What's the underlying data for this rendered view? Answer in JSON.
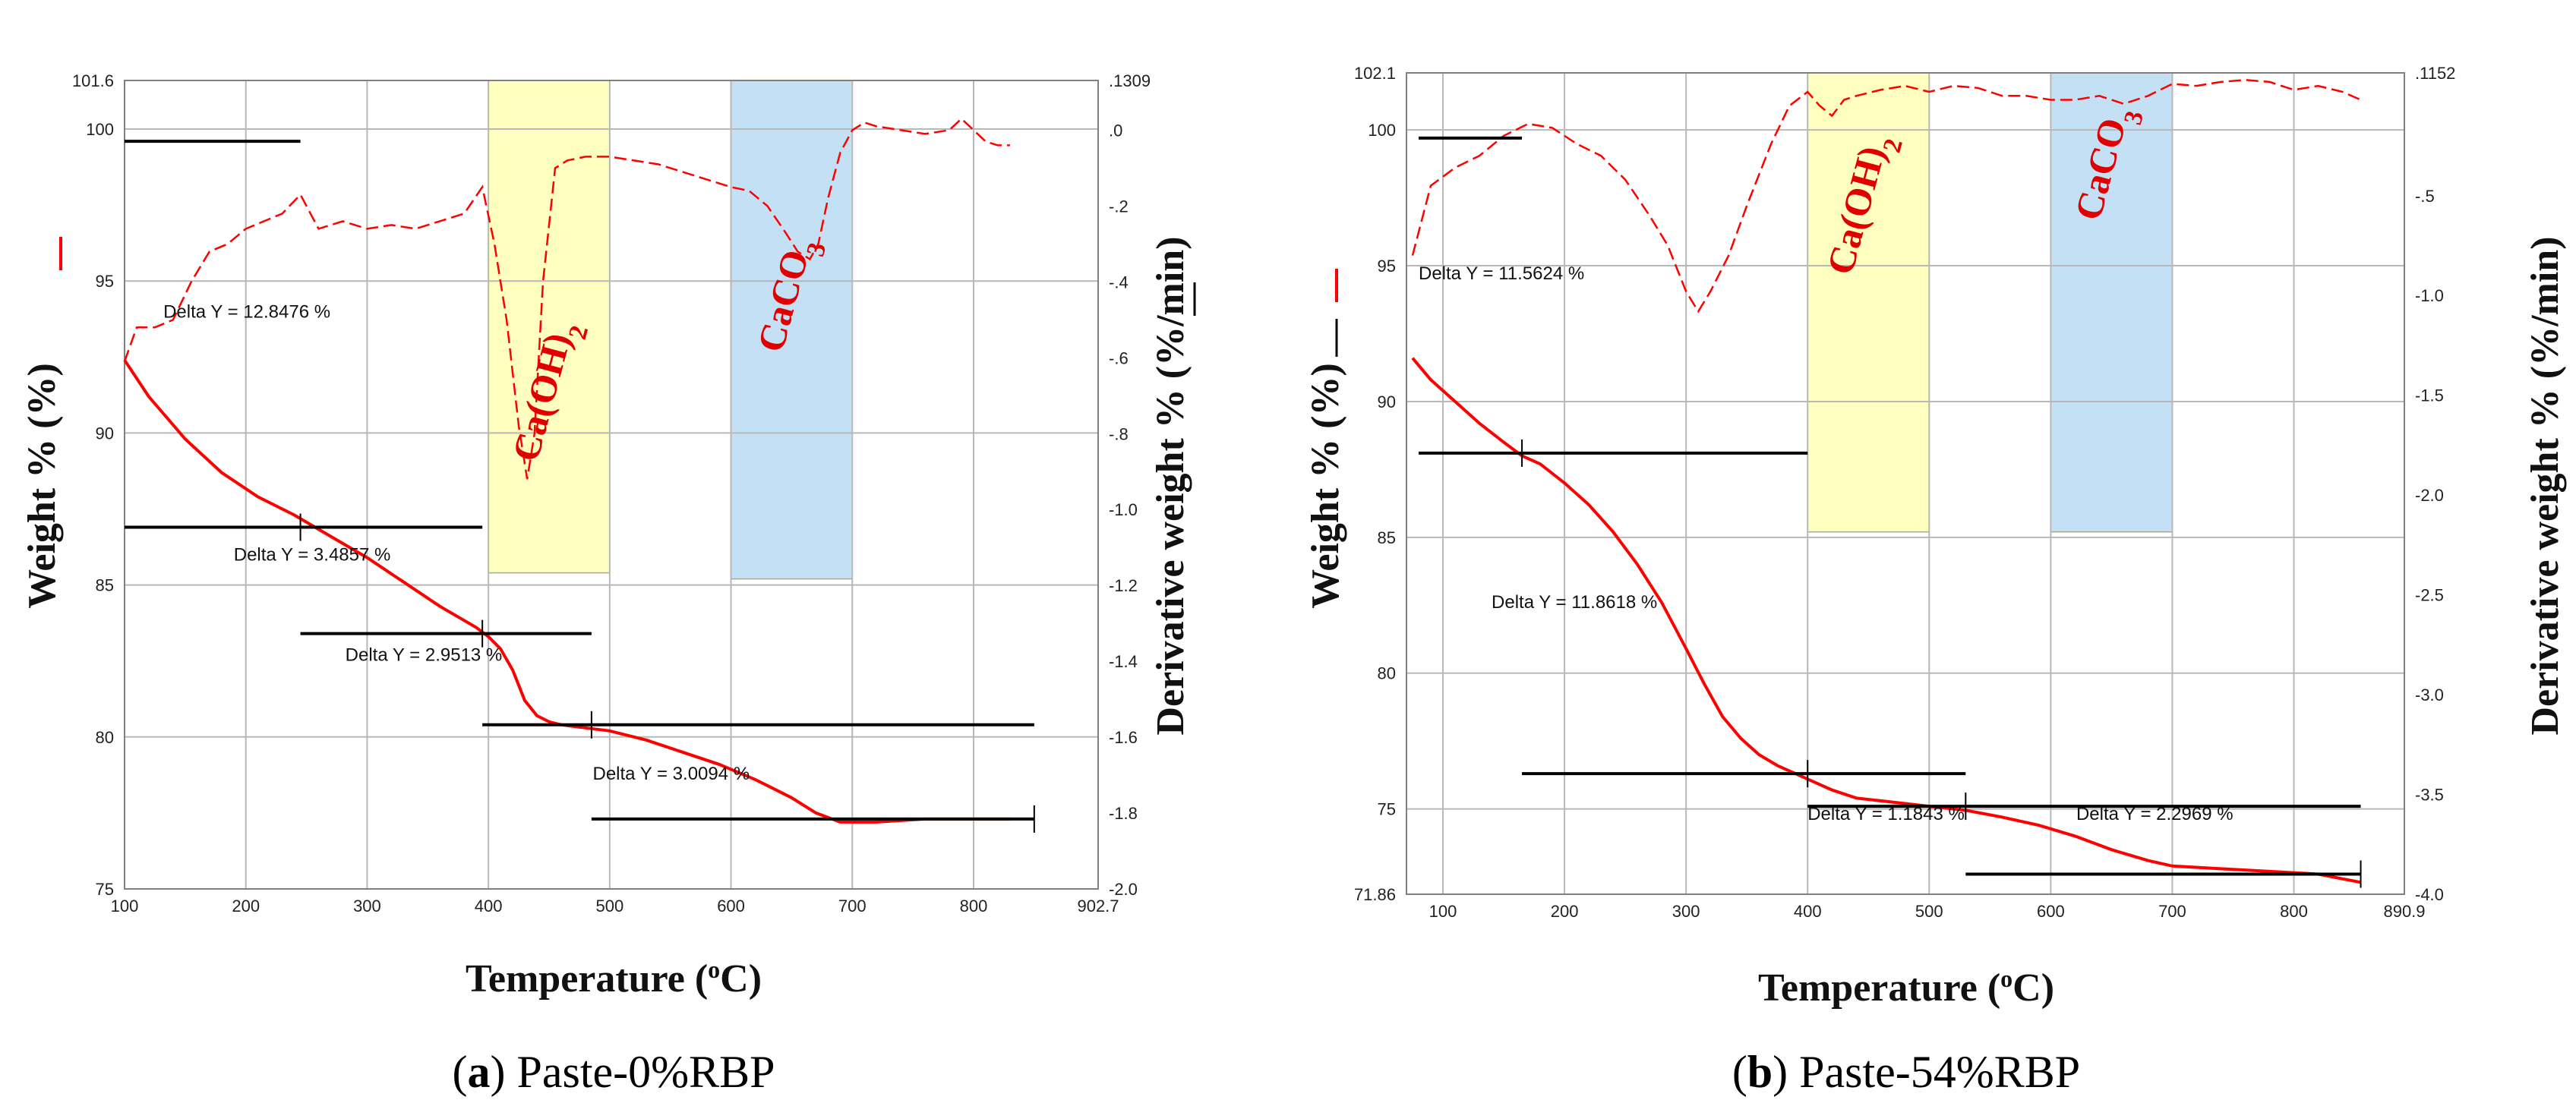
{
  "colors": {
    "weight_line": "#ff0000",
    "derivative_line": "#ff0000",
    "caoh2_band": "#ffffc0",
    "caco3_band": "#c4e0f4",
    "step_lines": "#000000"
  },
  "chart_data": [
    {
      "type": "line",
      "caption_letter": "a",
      "caption_rest": " Paste-0%RBP",
      "xlabel": "Temperature",
      "xunit": "(°C)",
      "ylabel": "Weight % (%)",
      "y2label": "Derivative weight % (%/min)",
      "xlim": [
        100,
        902.7
      ],
      "ylim": [
        75,
        101.6
      ],
      "y2lim": [
        -2.0,
        0.1309
      ],
      "x_ticks": [
        "100",
        "200",
        "300",
        "400",
        "500",
        "600",
        "700",
        "800",
        "902.7"
      ],
      "x_tick_values": [
        100,
        200,
        300,
        400,
        500,
        600,
        700,
        800,
        902.7
      ],
      "y_ticks": [
        "75",
        "80",
        "85",
        "90",
        "95",
        "100",
        "101.6"
      ],
      "y_tick_values": [
        75,
        80,
        85,
        90,
        95,
        100,
        101.6
      ],
      "y2_ticks": [
        "-2.0",
        "-1.8",
        "-1.6",
        "-1.4",
        "-1.2",
        "-1.0",
        "-.8",
        "-.6",
        "-.4",
        "-.2",
        ".0",
        ".1309"
      ],
      "y2_tick_values": [
        -2.0,
        -1.8,
        -1.6,
        -1.4,
        -1.2,
        -1.0,
        -0.8,
        -0.6,
        -0.4,
        -0.2,
        0.0,
        0.1309
      ],
      "bands": [
        {
          "name": "Ca(OH)2",
          "label": "Ca(OH)",
          "sub": "2",
          "x0": 400,
          "x1": 500,
          "y0": 85.4,
          "y1": 101.6,
          "color": "#ffffc0",
          "text_x": 440,
          "text_y": 89,
          "text_angle": -75
        },
        {
          "name": "CaCO3",
          "label": "CaCO",
          "sub": "3",
          "x0": 600,
          "x1": 700,
          "y0": 85.2,
          "y1": 101.6,
          "color": "#c4e0f4",
          "text_x": 642,
          "text_y": 92.6,
          "text_angle": -75
        }
      ],
      "weight": {
        "x": [
          100,
          120,
          150,
          180,
          210,
          240,
          270,
          300,
          330,
          360,
          390,
          400,
          410,
          420,
          430,
          440,
          450,
          460,
          480,
          500,
          530,
          560,
          590,
          620,
          650,
          670,
          690,
          700,
          720,
          760,
          800,
          830
        ],
        "y": [
          92.4,
          91.2,
          89.8,
          88.7,
          87.9,
          87.3,
          86.6,
          85.9,
          85.1,
          84.3,
          83.6,
          83.3,
          82.9,
          82.2,
          81.2,
          80.7,
          80.5,
          80.4,
          80.3,
          80.2,
          79.9,
          79.5,
          79.1,
          78.6,
          78.0,
          77.5,
          77.2,
          77.2,
          77.2,
          77.3,
          77.3,
          77.3
        ]
      },
      "derivative": {
        "x": [
          100,
          110,
          125,
          140,
          155,
          170,
          185,
          200,
          215,
          230,
          245,
          260,
          280,
          300,
          320,
          340,
          360,
          380,
          395,
          405,
          415,
          425,
          432,
          438,
          445,
          455,
          465,
          480,
          500,
          520,
          540,
          560,
          580,
          600,
          615,
          630,
          645,
          655,
          665,
          672,
          680,
          690,
          700,
          710,
          720,
          740,
          760,
          780,
          790,
          800,
          810,
          820,
          830
        ],
        "y": [
          -0.61,
          -0.52,
          -0.52,
          -0.5,
          -0.4,
          -0.32,
          -0.3,
          -0.26,
          -0.24,
          -0.22,
          -0.17,
          -0.26,
          -0.24,
          -0.26,
          -0.25,
          -0.26,
          -0.24,
          -0.22,
          -0.15,
          -0.3,
          -0.5,
          -0.78,
          -0.92,
          -0.8,
          -0.4,
          -0.1,
          -0.08,
          -0.07,
          -0.07,
          -0.08,
          -0.09,
          -0.11,
          -0.13,
          -0.15,
          -0.16,
          -0.2,
          -0.27,
          -0.32,
          -0.34,
          -0.3,
          -0.18,
          -0.06,
          0.0,
          0.02,
          0.01,
          0.0,
          -0.01,
          0.0,
          0.03,
          0.0,
          -0.03,
          -0.04,
          -0.04
        ]
      },
      "steps": [
        {
          "x0": 100,
          "x1": 245,
          "y": 99.6,
          "label": null
        },
        {
          "x0": 100,
          "x1": 395,
          "y": 86.9,
          "mark_x": 245,
          "label": "Delta Y = 12.8476 %",
          "label_x": 132,
          "label_y": 93.8
        },
        {
          "x0": 245,
          "x1": 485,
          "y": 83.4,
          "mark_x": 395,
          "label": "Delta Y = 3.4857 %",
          "label_x": 190,
          "label_y": 85.8
        },
        {
          "x0": 395,
          "x1": 850,
          "y": 80.4,
          "mark_x": 485,
          "label": "Delta Y = 2.9513 %",
          "label_x": 282,
          "label_y": 82.5
        },
        {
          "x0": 485,
          "x1": 850,
          "y": 77.3,
          "mark_x": 850,
          "label": "Delta Y = 3.0094 %",
          "label_x": 486,
          "label_y": 78.6
        }
      ]
    },
    {
      "type": "line",
      "caption_letter": "b",
      "caption_rest": " Paste-54%RBP",
      "xlabel": "Temperature",
      "xunit": "(°C)",
      "ylabel": "Weight % (%)",
      "y2label": "Derivative weight % (%/min)",
      "xlim": [
        70,
        890.9
      ],
      "ylim": [
        71.86,
        102.1
      ],
      "y2lim": [
        -4.0,
        0.1152
      ],
      "x_ticks": [
        "100",
        "200",
        "300",
        "400",
        "500",
        "600",
        "700",
        "800",
        "890.9"
      ],
      "x_tick_values": [
        100,
        200,
        300,
        400,
        500,
        600,
        700,
        800,
        890.9
      ],
      "y_ticks": [
        "71.86",
        "75",
        "80",
        "85",
        "90",
        "95",
        "100",
        "102.1"
      ],
      "y_tick_values": [
        71.86,
        75,
        80,
        85,
        90,
        95,
        100,
        102.1
      ],
      "y2_ticks": [
        "-4.0",
        "-3.5",
        "-3.0",
        "-2.5",
        "-2.0",
        "-1.5",
        "-1.0",
        "-.5",
        ".1152"
      ],
      "y2_tick_values": [
        -4.0,
        -3.5,
        -3.0,
        -2.5,
        -2.0,
        -1.5,
        -1.0,
        -0.5,
        0.1152
      ],
      "bands": [
        {
          "name": "Ca(OH)2",
          "label": "Ca(OH)",
          "sub": "2",
          "x0": 400,
          "x1": 500,
          "y0": 85.2,
          "y1": 102.1,
          "color": "#ffffc0",
          "text_x": 436,
          "text_y": 94.6,
          "text_angle": -75
        },
        {
          "name": "CaCO3",
          "label": "CaCO",
          "sub": "3",
          "x0": 600,
          "x1": 700,
          "y0": 85.2,
          "y1": 102.1,
          "color": "#c4e0f4",
          "text_x": 640,
          "text_y": 96.6,
          "text_angle": -75
        }
      ],
      "weight": {
        "x": [
          75,
          90,
          110,
          130,
          150,
          165,
          180,
          200,
          220,
          240,
          260,
          280,
          300,
          315,
          330,
          345,
          360,
          375,
          390,
          400,
          420,
          440,
          460,
          480,
          500,
          520,
          530,
          560,
          590,
          620,
          650,
          680,
          700,
          740,
          780,
          820,
          855
        ],
        "y": [
          91.6,
          90.8,
          90.0,
          89.2,
          88.5,
          88.0,
          87.7,
          87.0,
          86.2,
          85.2,
          84.0,
          82.6,
          80.9,
          79.6,
          78.4,
          77.6,
          77.0,
          76.6,
          76.3,
          76.1,
          75.7,
          75.4,
          75.3,
          75.2,
          75.1,
          75.0,
          74.95,
          74.7,
          74.4,
          74.0,
          73.5,
          73.1,
          72.9,
          72.8,
          72.7,
          72.6,
          72.3
        ]
      },
      "derivative": {
        "x": [
          75,
          90,
          110,
          130,
          150,
          170,
          190,
          210,
          230,
          250,
          270,
          285,
          300,
          310,
          320,
          335,
          350,
          370,
          385,
          400,
          410,
          420,
          430,
          440,
          460,
          480,
          500,
          520,
          540,
          560,
          580,
          600,
          620,
          640,
          660,
          680,
          700,
          720,
          740,
          760,
          780,
          800,
          820,
          840,
          855
        ],
        "y": [
          -0.8,
          -0.45,
          -0.36,
          -0.3,
          -0.2,
          -0.14,
          -0.16,
          -0.24,
          -0.3,
          -0.42,
          -0.6,
          -0.75,
          -0.98,
          -1.08,
          -0.98,
          -0.8,
          -0.55,
          -0.24,
          -0.05,
          0.02,
          -0.05,
          -0.1,
          -0.02,
          0.0,
          0.03,
          0.05,
          0.02,
          0.05,
          0.04,
          0.0,
          0.0,
          -0.02,
          -0.02,
          0.0,
          -0.04,
          0.0,
          0.06,
          0.05,
          0.07,
          0.08,
          0.07,
          0.03,
          0.05,
          0.02,
          -0.02
        ]
      },
      "steps": [
        {
          "x0": 80,
          "x1": 165,
          "y": 99.7,
          "label": null
        },
        {
          "x0": 80,
          "x1": 400,
          "y": 88.1,
          "mark_x": 165,
          "label": "Delta Y = 11.5624 %",
          "label_x": 80,
          "label_y": 94.5
        },
        {
          "x0": 165,
          "x1": 530,
          "y": 76.3,
          "mark_x": 400,
          "label": "Delta Y = 11.8618 %",
          "label_x": 140,
          "label_y": 82.4
        },
        {
          "x0": 400,
          "x1": 855,
          "y": 75.1,
          "mark_x": 530,
          "label": "Delta Y = 1.1843 %",
          "label_x": 400,
          "label_y": 74.6
        },
        {
          "x0": 530,
          "x1": 855,
          "y": 72.6,
          "mark_x": 855,
          "label": "Delta Y = 2.2969 %",
          "label_x": 621,
          "label_y": 74.6
        }
      ]
    }
  ]
}
